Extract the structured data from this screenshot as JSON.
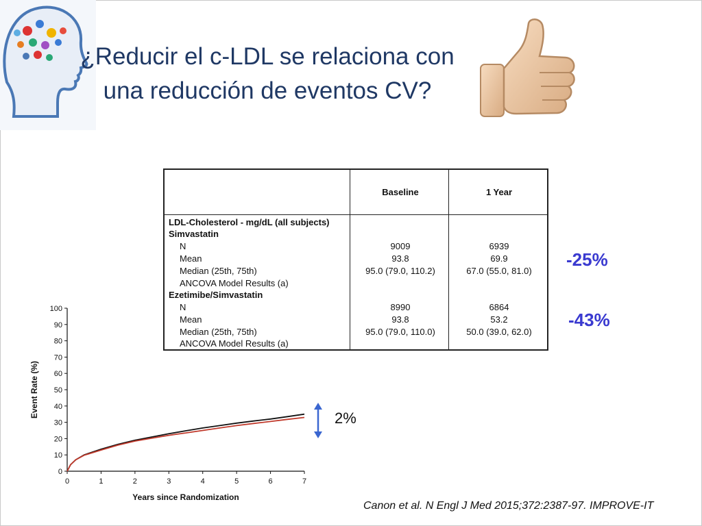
{
  "slide": {
    "title_line1": "¿Reducir el c-LDL se relaciona con",
    "title_line2": "una reducción de eventos CV?",
    "thumb_icon": "thumbs-up-icon",
    "logo_icon": "brain-head-logo-icon",
    "citation": "Canon et al. N Engl J Med 2015;372:2387-97. IMPROVE-IT"
  },
  "table": {
    "col_headers": [
      "Baseline",
      "1 Year"
    ],
    "section_title": "LDL-Cholesterol - mg/dL (all subjects)",
    "groups": [
      {
        "name": "Simvastatin",
        "rows": [
          {
            "label": "N",
            "baseline": "9009",
            "year1": "6939"
          },
          {
            "label": "Mean",
            "baseline": "93.8",
            "year1": "69.9"
          },
          {
            "label": "Median (25th, 75th)",
            "baseline": "95.0 (79.0, 110.2)",
            "year1": "67.0 (55.0, 81.0)"
          },
          {
            "label": "ANCOVA Model Results (a)",
            "baseline": "",
            "year1": ""
          }
        ]
      },
      {
        "name": "Ezetimibe/Simvastatin",
        "rows": [
          {
            "label": "N",
            "baseline": "8990",
            "year1": "6864"
          },
          {
            "label": "Mean",
            "baseline": "93.8",
            "year1": "53.2"
          },
          {
            "label": "Median (25th, 75th)",
            "baseline": "95.0 (79.0, 110.0)",
            "year1": "50.0 (39.0, 62.0)"
          },
          {
            "label": "ANCOVA Model Results (a)",
            "baseline": "",
            "year1": ""
          }
        ]
      }
    ]
  },
  "annotations": {
    "reduction_simva": "-25%",
    "reduction_eze": "-43%",
    "difference": "2%",
    "accent_color": "#3a3ad0"
  },
  "chart_data": {
    "type": "line",
    "xlabel": "Years since Randomization",
    "ylabel": "Event Rate (%)",
    "xlim": [
      0,
      7
    ],
    "ylim": [
      0,
      100
    ],
    "xticks": [
      0,
      1,
      2,
      3,
      4,
      5,
      6,
      7
    ],
    "yticks": [
      0,
      10,
      20,
      30,
      40,
      50,
      60,
      70,
      80,
      90,
      100
    ],
    "x": [
      0,
      0.1,
      0.25,
      0.5,
      1,
      1.5,
      2,
      2.5,
      3,
      3.5,
      4,
      4.5,
      5,
      5.5,
      6,
      6.5,
      7
    ],
    "series": [
      {
        "color": "#111111",
        "values": [
          0,
          4,
          7,
          10,
          13.5,
          16.5,
          19,
          21,
          23,
          24.8,
          26.5,
          28,
          29.5,
          30.8,
          32,
          33.5,
          35
        ]
      },
      {
        "color": "#c0392b",
        "values": [
          0,
          4,
          7,
          9.8,
          13,
          16,
          18.5,
          20.3,
          22,
          23.5,
          25,
          26.5,
          28,
          29.3,
          30.5,
          31.8,
          33
        ]
      }
    ]
  }
}
